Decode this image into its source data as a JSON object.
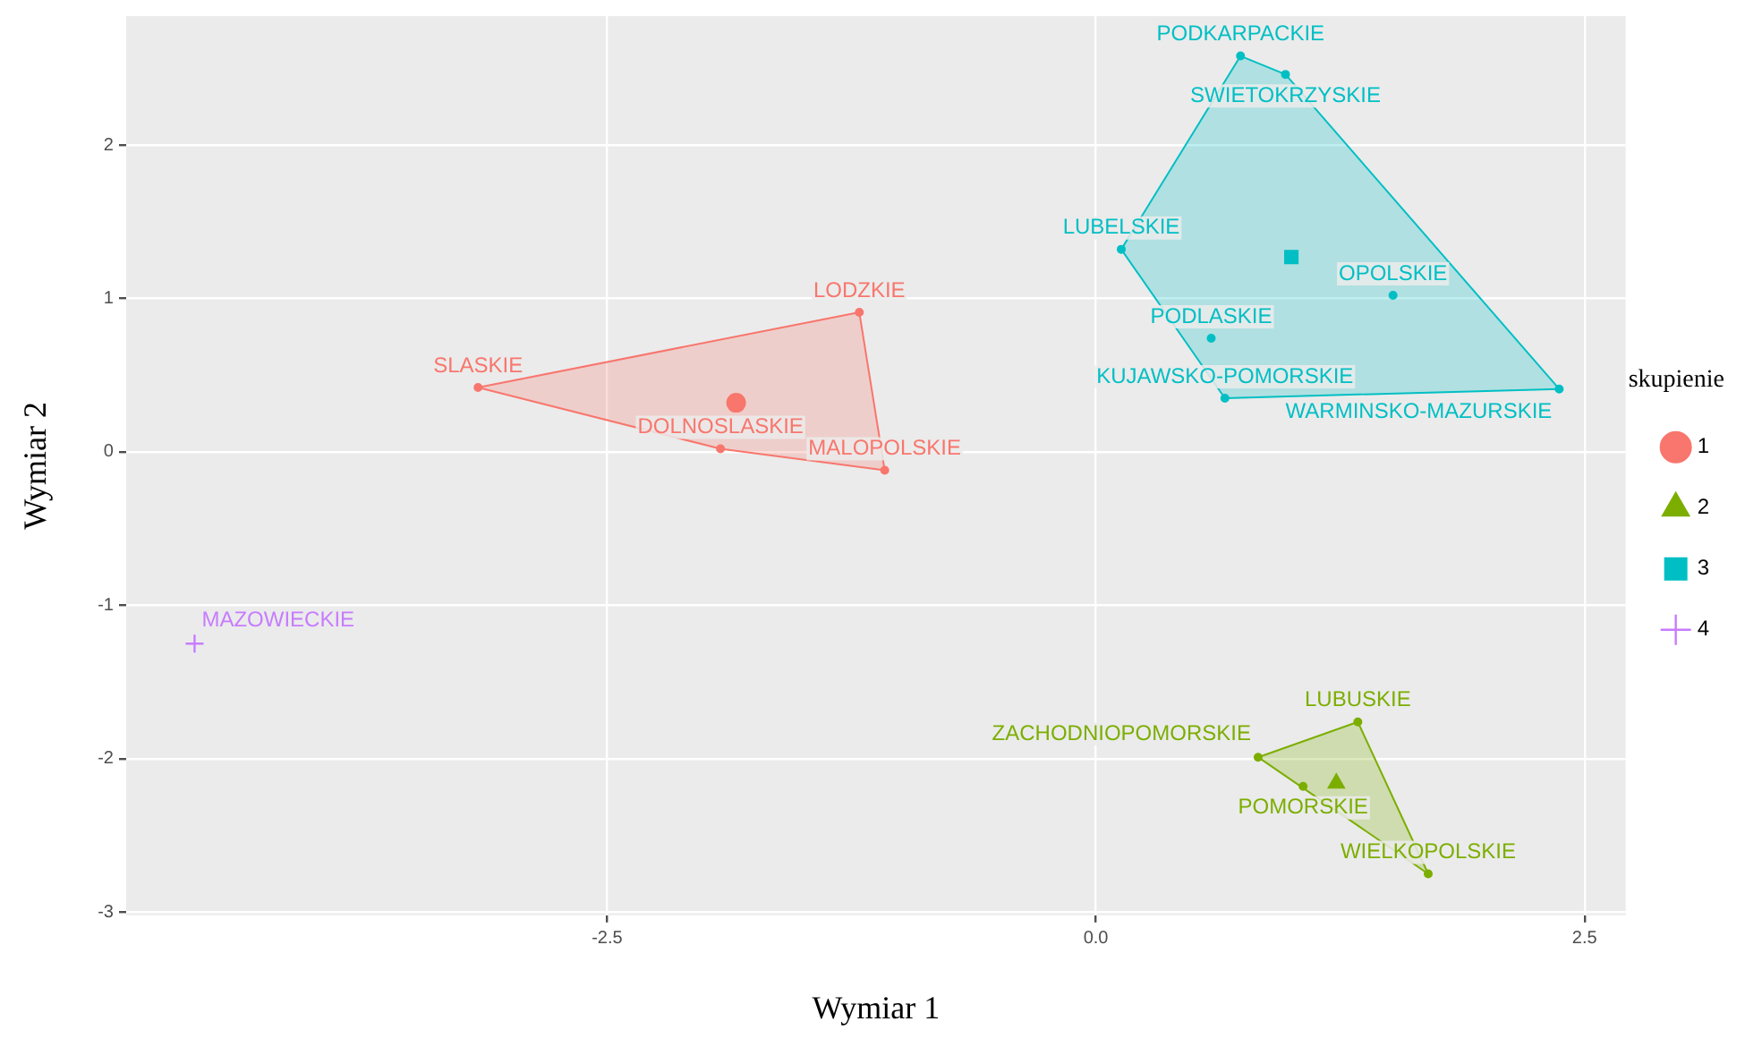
{
  "chart_data": {
    "type": "scatter",
    "xlabel": "Wymiar 1",
    "ylabel": "Wymiar 2",
    "legend_title": "skupienie",
    "legend": "right",
    "grid": true,
    "xlim": [
      -4.96,
      2.71
    ],
    "xticks": [
      {
        "value": -2.5,
        "label": "-2.5"
      },
      {
        "value": 0,
        "label": "0.0"
      },
      {
        "value": 2.5,
        "label": "2.5"
      }
    ],
    "ylim": [
      -3.02,
      2.84
    ],
    "yticks": [
      -3,
      -2,
      -1,
      0,
      1,
      2
    ],
    "series": [
      {
        "type": "area",
        "color": "#f8766d",
        "x": [
          -3.16,
          -1.21,
          -1.08,
          -1.92,
          -3.16
        ],
        "values": [
          0.42,
          0.91,
          -0.12,
          0.02,
          0.42
        ]
      },
      {
        "type": "area",
        "color": "#7cae00",
        "x": [
          0.83,
          1.34,
          1.7,
          0.83
        ],
        "values": [
          -1.99,
          -1.76,
          -2.75,
          -1.99
        ]
      },
      {
        "type": "area",
        "color": "#00bfc4",
        "x": [
          0.74,
          0.97,
          2.37,
          0.66,
          0.13,
          0.74
        ],
        "values": [
          2.58,
          2.46,
          0.41,
          0.35,
          1.32,
          2.58
        ]
      },
      {
        "color": "#f8766d",
        "marker": "circle",
        "x": [
          -3.16,
          -1.21,
          -1.92,
          -1.08
        ],
        "values": [
          0.42,
          0.91,
          0.02,
          -0.12
        ],
        "value_labels": [
          "SLASKIE",
          "LODZKIE",
          "DOLNOSLASKIE",
          "MALOPOLSKIE"
        ]
      },
      {
        "color": "#7cae00",
        "marker": "circle",
        "x": [
          1.34,
          0.83,
          1.06,
          1.7
        ],
        "values": [
          -1.76,
          -1.99,
          -2.18,
          -2.75
        ],
        "value_labels": [
          "LUBUSKIE",
          "ZACHODNIOPOMORSKIE",
          "POMORSKIE",
          "WIELKOPOLSKIE"
        ]
      },
      {
        "color": "#00bfc4",
        "marker": "circle",
        "x": [
          0.74,
          0.97,
          0.13,
          1.52,
          0.59,
          0.66,
          2.37
        ],
        "values": [
          2.58,
          2.46,
          1.32,
          1.02,
          0.74,
          0.35,
          0.41
        ],
        "value_labels": [
          "PODKARPACKIE",
          "SWIETOKRZYSKIE",
          "LUBELSKIE",
          "OPOLSKIE",
          "PODLASKIE",
          "KUJAWSKO-POMORSKIE",
          "WARMINSKO-MAZURSKIE"
        ]
      },
      {
        "name": "1",
        "color": "#f8766d",
        "marker": "circle",
        "x": [
          -1.84
        ],
        "values": [
          0.32
        ]
      },
      {
        "name": "2",
        "color": "#7cae00",
        "marker": "triangle",
        "x": [
          1.23
        ],
        "values": [
          -2.16
        ]
      },
      {
        "name": "3",
        "color": "#00bfc4",
        "marker": "square",
        "x": [
          1.0
        ],
        "values": [
          1.27
        ]
      },
      {
        "name": "4",
        "color": "#c77cff",
        "marker": "cross",
        "x": [
          -4.61
        ],
        "values": [
          -1.25
        ],
        "value_labels": [
          "MAZOWIECKIE"
        ]
      }
    ]
  }
}
